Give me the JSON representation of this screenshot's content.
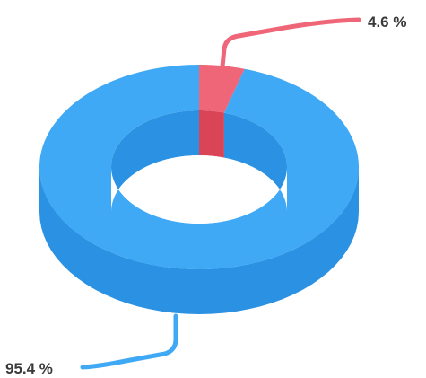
{
  "chart_data": {
    "type": "pie",
    "variant": "3d-donut",
    "series": [
      {
        "value": 4.6,
        "label": "4.6 %",
        "color": "#ee6677",
        "side_color": "#d94457"
      },
      {
        "value": 95.4,
        "label": "95.4 %",
        "color": "#3fa9f5",
        "side_color": "#2a91e3"
      }
    ],
    "background": "#ffffff"
  }
}
